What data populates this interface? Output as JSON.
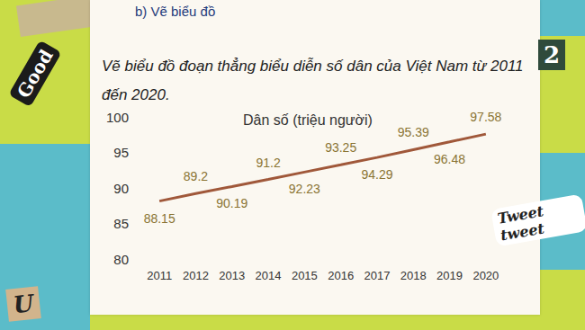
{
  "page": {
    "heading": "b) Vẽ biểu đồ",
    "instruction": "Vẽ biểu đồ đoạn thẳng biểu diễn số dân của Việt Nam từ 2011 đến 2020.",
    "stickers": [
      "Good",
      "2",
      "Tweet tweet",
      "U"
    ]
  },
  "chart_data": {
    "type": "line",
    "title": "Dân số (triệu người)",
    "categories": [
      "2011",
      "2012",
      "2013",
      "2014",
      "2015",
      "2016",
      "2017",
      "2018",
      "2019",
      "2020"
    ],
    "values": [
      88.15,
      89.2,
      90.19,
      91.2,
      92.23,
      93.25,
      94.29,
      95.39,
      96.48,
      97.58
    ],
    "color": "#a0583a",
    "ylim": [
      80,
      100
    ],
    "yticks": [
      80,
      85,
      90,
      95,
      100
    ],
    "grid": false,
    "data_labels": true
  }
}
